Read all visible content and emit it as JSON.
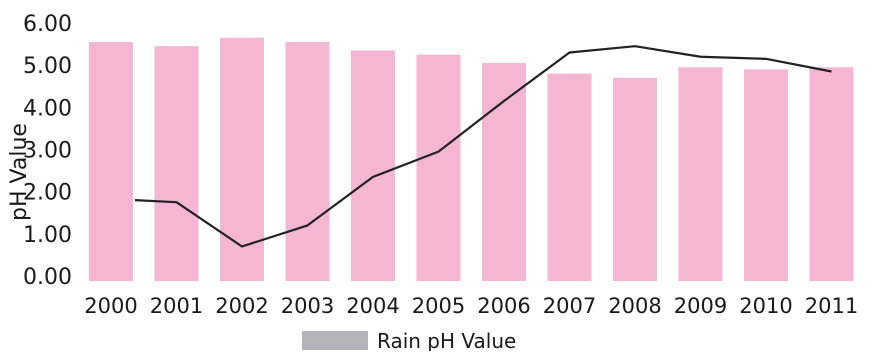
{
  "chart_data": {
    "type": "bar",
    "categories": [
      "2000",
      "2001",
      "2002",
      "2003",
      "2004",
      "2005",
      "2006",
      "2007",
      "2008",
      "2009",
      "2010",
      "2011"
    ],
    "series": [
      {
        "name": "Rain pH Value",
        "type": "bar",
        "values": [
          5.55,
          5.45,
          5.65,
          5.55,
          5.35,
          5.25,
          5.05,
          4.8,
          4.7,
          4.95,
          4.9,
          4.95
        ],
        "color": "#f4b6d2"
      },
      {
        "type": "line",
        "values": [
          1.8,
          1.75,
          0.7,
          1.2,
          2.35,
          2.95,
          4.15,
          5.3,
          5.45,
          5.2,
          5.15,
          4.85
        ],
        "color": "#222222"
      }
    ],
    "ylabel": "pH Value",
    "ylim": [
      0,
      6
    ],
    "yticks": [
      "0.00",
      "1.00",
      "2.00",
      "3.00",
      "4.00",
      "5.00",
      "6.00"
    ],
    "legend": {
      "position": "bottom-center",
      "entries": [
        {
          "label": "Rain pH Value",
          "color": "#b3b3b8"
        }
      ]
    },
    "grid": false
  }
}
